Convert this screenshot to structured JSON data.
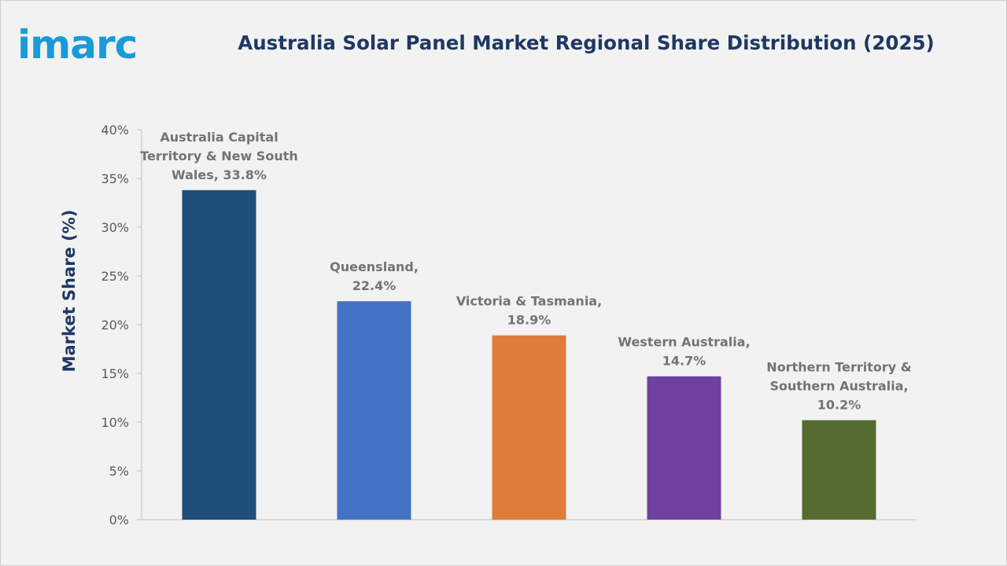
{
  "brand": {
    "logo_text": "imarc",
    "logo_color": "#1a9ad6"
  },
  "chart_data": {
    "type": "bar",
    "title": "Australia Solar Panel Market Regional Share Distribution (2025)",
    "xlabel": "",
    "ylabel": "Market Share (%)",
    "ylim": [
      0,
      40
    ],
    "yticks": [
      "0%",
      "5%",
      "10%",
      "15%",
      "20%",
      "25%",
      "30%",
      "35%",
      "40%"
    ],
    "grid": false,
    "legend": "none",
    "categories": [
      "Australia Capital Territory & New South Wales",
      "Queensland",
      "Victoria & Tasmania",
      "Western Australia",
      "Northern Territory & Southern Australia"
    ],
    "values": [
      33.8,
      22.4,
      18.9,
      14.7,
      10.2
    ],
    "data_labels": [
      [
        "Australia Capital",
        "Territory & New South",
        "Wales, 33.8%"
      ],
      [
        "Queensland,",
        "22.4%"
      ],
      [
        "Victoria & Tasmania,",
        "18.9%"
      ],
      [
        "Western Australia,",
        "14.7%"
      ],
      [
        "Northern Territory &",
        "Southern Australia,",
        "10.2%"
      ]
    ],
    "colors": [
      "#1f4e79",
      "#4472c4",
      "#e07b39",
      "#7040a0",
      "#556b2f"
    ]
  }
}
